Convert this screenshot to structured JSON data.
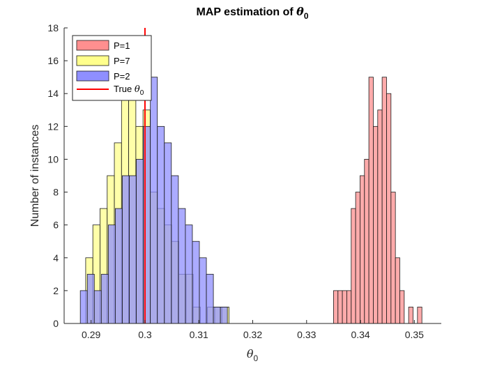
{
  "chart_data": {
    "type": "histogram",
    "title_prefix": "MAP estimation of ",
    "title_symbol": "θ",
    "title_subscript": "0",
    "xlabel_symbol": "θ",
    "xlabel_subscript": "0",
    "ylabel": "Number of instances",
    "xlim": [
      0.285,
      0.355
    ],
    "ylim": [
      0,
      18
    ],
    "xticks": [
      "0.29",
      "0.3",
      "0.31",
      "0.32",
      "0.33",
      "0.34",
      "0.35"
    ],
    "yticks": [
      "0",
      "2",
      "4",
      "6",
      "8",
      "10",
      "12",
      "14",
      "16",
      "18"
    ],
    "legend_position": "top-left",
    "true_value": 0.3,
    "series": [
      {
        "name": "P=1",
        "color": "#ff8f8f",
        "bin_start": 0.335,
        "bin_width": 0.00082,
        "counts": [
          2,
          2,
          2,
          2,
          7,
          8,
          9,
          10,
          15,
          12,
          13,
          15,
          14,
          8,
          4,
          2,
          0,
          1,
          0,
          1
        ]
      },
      {
        "name": "P=7",
        "color": "#ffff8c",
        "bin_start": 0.289,
        "bin_width": 0.00133,
        "counts": [
          4,
          6,
          7,
          9,
          11,
          14,
          14,
          12,
          13,
          8,
          7,
          6,
          5,
          3,
          3,
          1,
          0,
          1,
          1,
          1
        ]
      },
      {
        "name": "P=2",
        "color": "#8f8fff",
        "bin_start": 0.288,
        "bin_width": 0.0013,
        "counts": [
          2,
          3,
          2,
          3,
          6,
          7,
          9,
          9,
          10,
          12,
          15,
          12,
          11,
          9,
          7,
          6,
          5,
          4,
          3,
          1,
          1
        ]
      }
    ],
    "legend_true": "True ",
    "true_color": "#ff0000"
  }
}
